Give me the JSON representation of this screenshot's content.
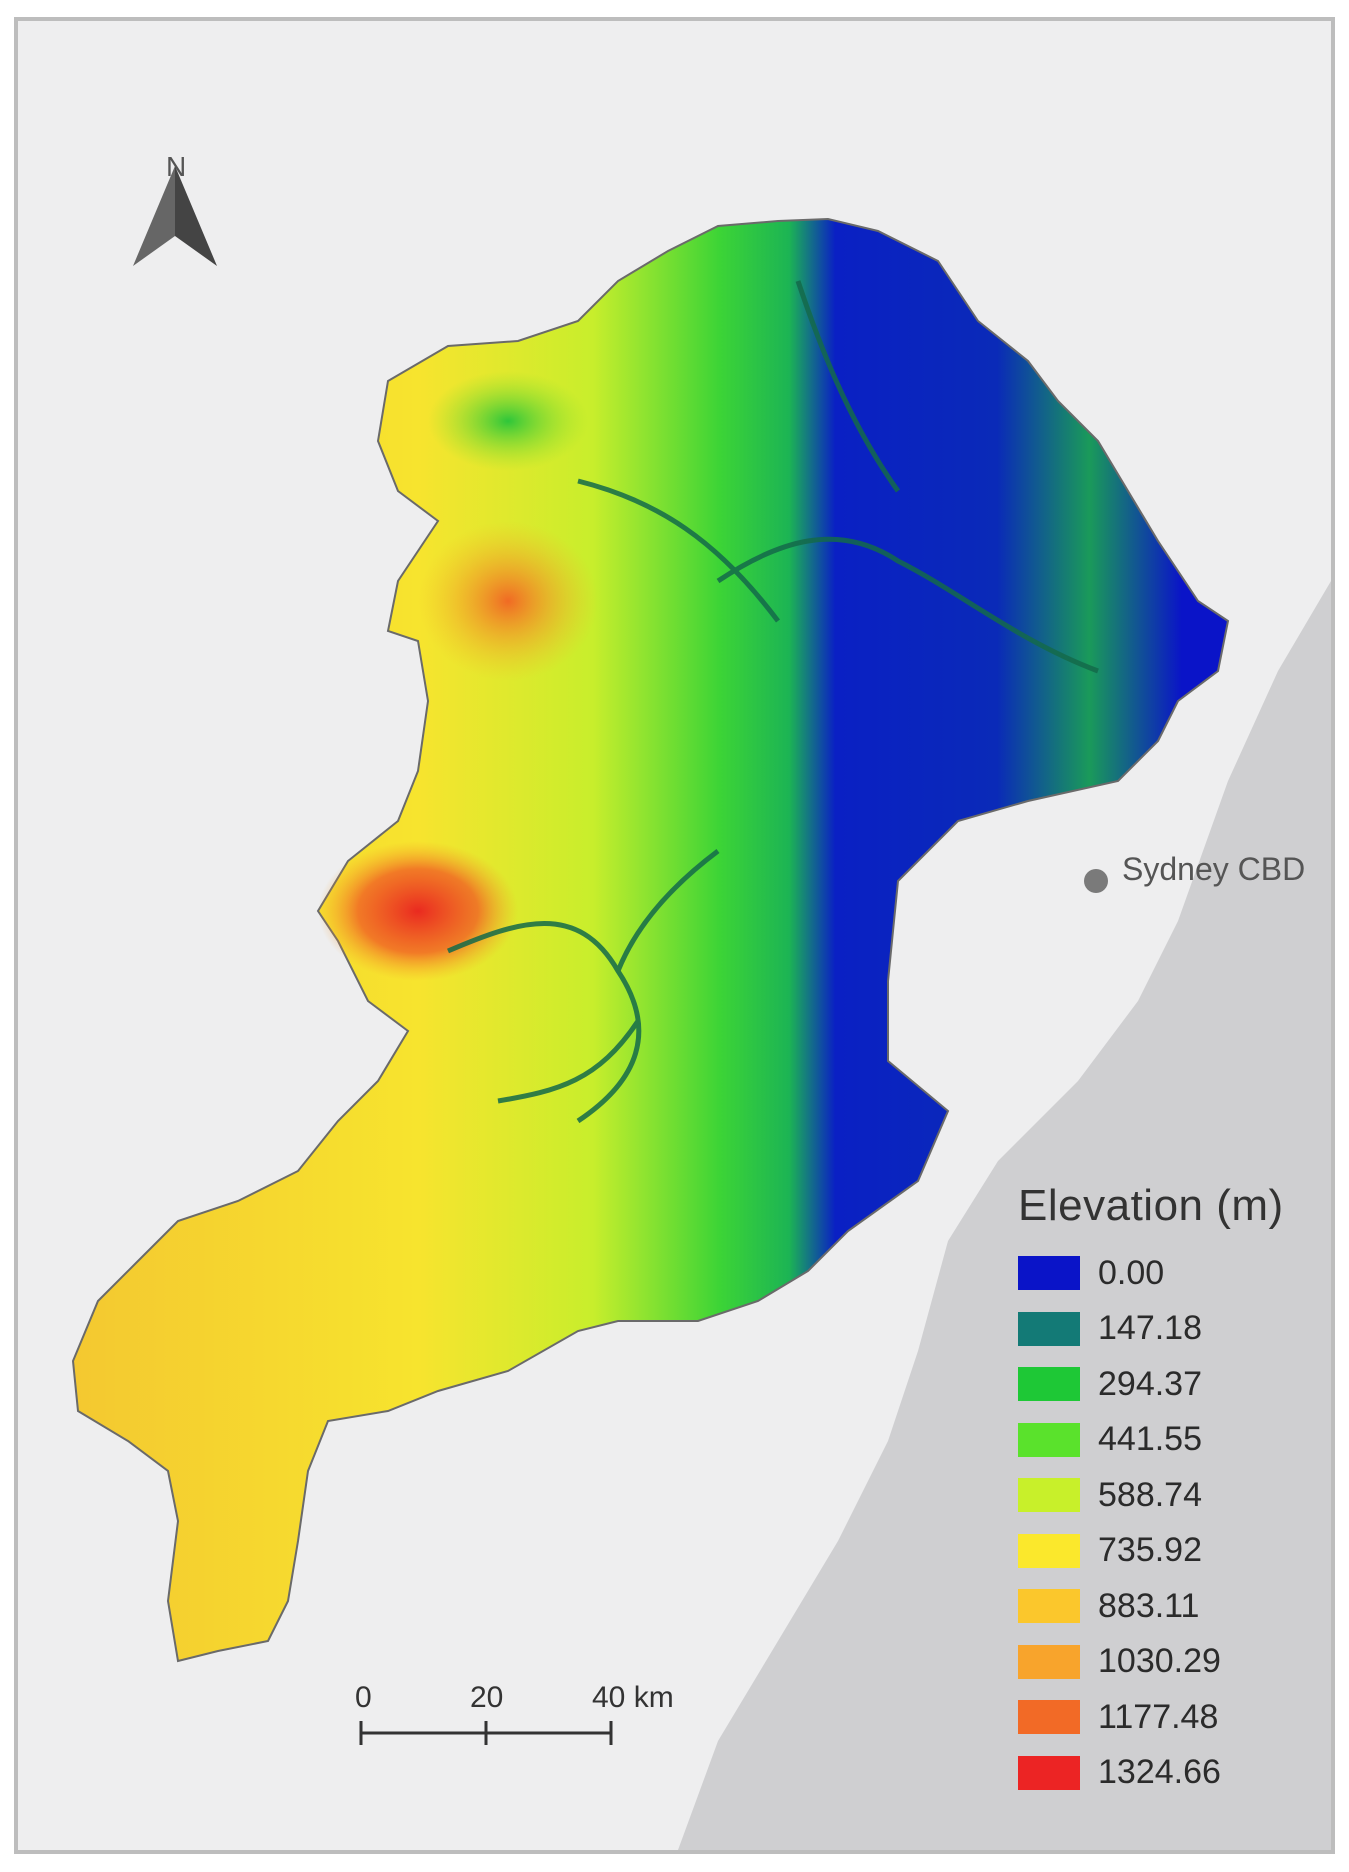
{
  "legend": {
    "title": "Elevation (m)",
    "items": [
      {
        "label": "0.00",
        "color": "#0a14c8"
      },
      {
        "label": "147.18",
        "color": "#137a76"
      },
      {
        "label": "294.37",
        "color": "#1ec836"
      },
      {
        "label": "441.55",
        "color": "#5ae22c"
      },
      {
        "label": "588.74",
        "color": "#c8f02a"
      },
      {
        "label": "735.92",
        "color": "#fbe82c"
      },
      {
        "label": "883.11",
        "color": "#fbc72c"
      },
      {
        "label": "1030.29",
        "color": "#f8a42c"
      },
      {
        "label": "1177.48",
        "color": "#f26a26"
      },
      {
        "label": "1324.66",
        "color": "#ec2424"
      }
    ]
  },
  "city": {
    "label": "Sydney CBD"
  },
  "north_arrow": {
    "label": "N"
  },
  "scale_bar": {
    "labels": [
      "0",
      "20",
      "40 km"
    ]
  }
}
